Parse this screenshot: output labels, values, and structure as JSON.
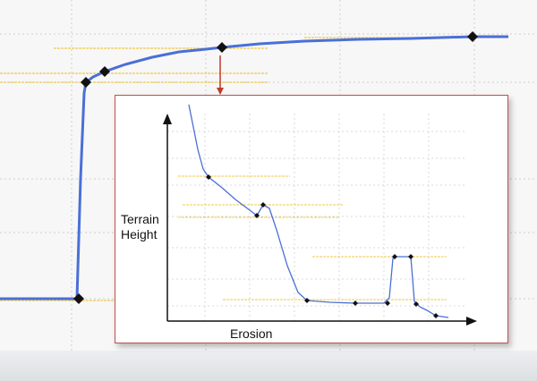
{
  "main_curve": {
    "line_color": "#4a6fd6",
    "grid_color": "#cfcfcf",
    "guide_color": "#f0c94a"
  },
  "inset": {
    "border_color": "#c0504d",
    "ylabel": "Terrain\nHeight",
    "xlabel": "Erosion"
  },
  "connector_color": "#c0392b"
}
